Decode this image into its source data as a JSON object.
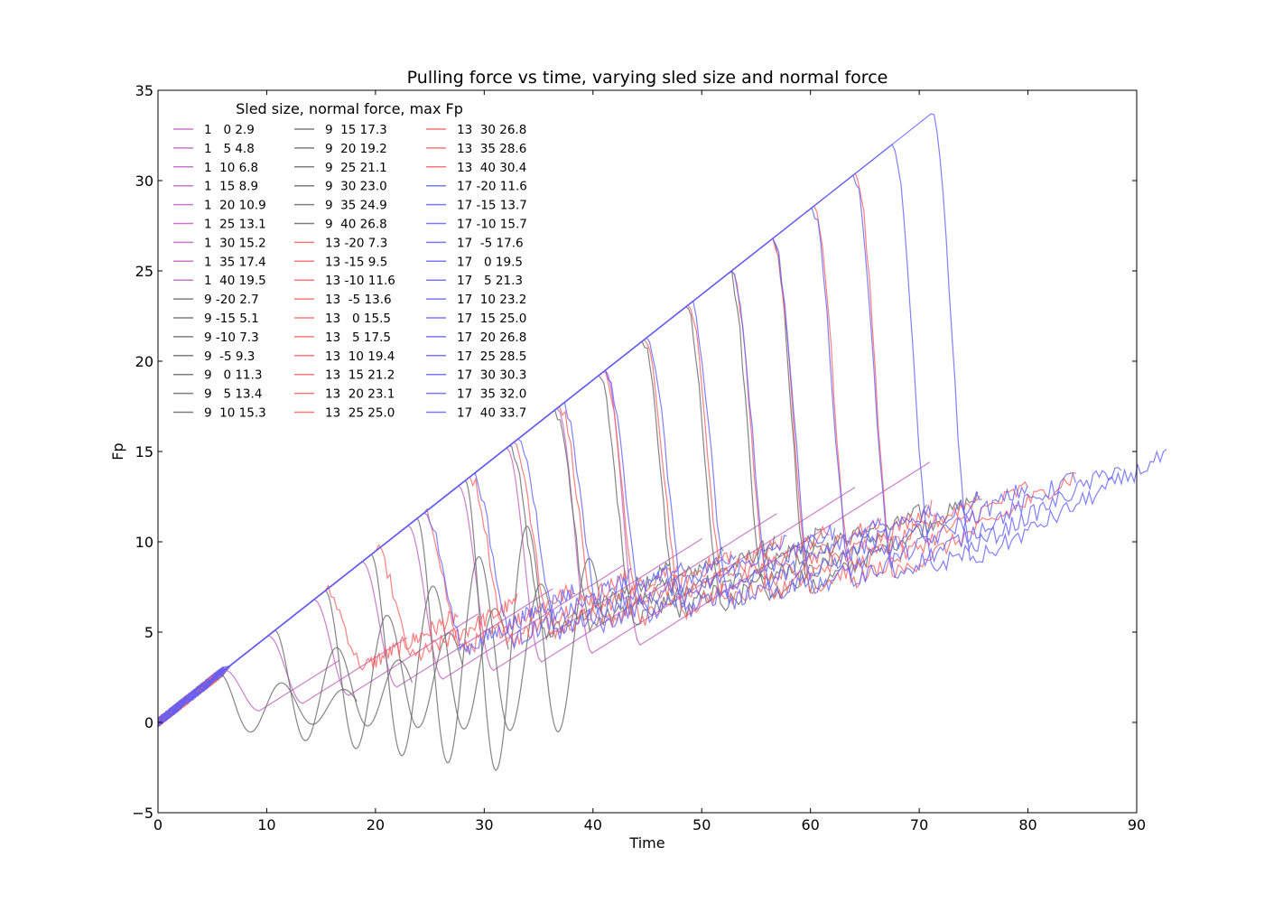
{
  "chart_data": {
    "type": "line",
    "title": "Pulling force vs time, varying sled size and normal force",
    "xlabel": "Time",
    "ylabel": "Fp",
    "xlim": [
      0,
      90
    ],
    "ylim": [
      -5,
      35
    ],
    "xticks": [
      0,
      10,
      20,
      30,
      40,
      50,
      60,
      70,
      80,
      90
    ],
    "yticks": [
      -5,
      0,
      5,
      10,
      15,
      20,
      25,
      30,
      35
    ],
    "grid": false,
    "legend": {
      "title": "Sled size, normal force, max Fp",
      "placement": "upper-left",
      "columns": 3
    },
    "colors": {
      "1": "#bf5fbf",
      "9": "#666666",
      "13": "#ff5f5f",
      "17": "#6060ff"
    },
    "series": [
      {
        "name": "1   0 2.9",
        "size": 1,
        "normal": 0,
        "max": 2.9
      },
      {
        "name": "1   5 4.8",
        "size": 1,
        "normal": 5,
        "max": 4.8
      },
      {
        "name": "1  10 6.8",
        "size": 1,
        "normal": 10,
        "max": 6.8
      },
      {
        "name": "1  15 8.9",
        "size": 1,
        "normal": 15,
        "max": 8.9
      },
      {
        "name": "1  20 10.9",
        "size": 1,
        "normal": 20,
        "max": 10.9
      },
      {
        "name": "1  25 13.1",
        "size": 1,
        "normal": 25,
        "max": 13.1
      },
      {
        "name": "1  30 15.2",
        "size": 1,
        "normal": 30,
        "max": 15.2
      },
      {
        "name": "1  35 17.4",
        "size": 1,
        "normal": 35,
        "max": 17.4
      },
      {
        "name": "1  40 19.5",
        "size": 1,
        "normal": 40,
        "max": 19.5
      },
      {
        "name": "9 -20 2.7",
        "size": 9,
        "normal": -20,
        "max": 2.7
      },
      {
        "name": "9 -15 5.1",
        "size": 9,
        "normal": -15,
        "max": 5.1
      },
      {
        "name": "9 -10 7.3",
        "size": 9,
        "normal": -10,
        "max": 7.3
      },
      {
        "name": "9  -5 9.3",
        "size": 9,
        "normal": -5,
        "max": 9.3
      },
      {
        "name": "9   0 11.3",
        "size": 9,
        "normal": 0,
        "max": 11.3
      },
      {
        "name": "9   5 13.4",
        "size": 9,
        "normal": 5,
        "max": 13.4
      },
      {
        "name": "9  10 15.3",
        "size": 9,
        "normal": 10,
        "max": 15.3
      },
      {
        "name": "9  15 17.3",
        "size": 9,
        "normal": 15,
        "max": 17.3
      },
      {
        "name": "9  20 19.2",
        "size": 9,
        "normal": 20,
        "max": 19.2
      },
      {
        "name": "9  25 21.1",
        "size": 9,
        "normal": 25,
        "max": 21.1
      },
      {
        "name": "9  30 23.0",
        "size": 9,
        "normal": 30,
        "max": 23.0
      },
      {
        "name": "9  35 24.9",
        "size": 9,
        "normal": 35,
        "max": 24.9
      },
      {
        "name": "9  40 26.8",
        "size": 9,
        "normal": 40,
        "max": 26.8
      },
      {
        "name": "13 -20 7.3",
        "size": 13,
        "normal": -20,
        "max": 7.3
      },
      {
        "name": "13 -15 9.5",
        "size": 13,
        "normal": -15,
        "max": 9.5
      },
      {
        "name": "13 -10 11.6",
        "size": 13,
        "normal": -10,
        "max": 11.6
      },
      {
        "name": "13  -5 13.6",
        "size": 13,
        "normal": -5,
        "max": 13.6
      },
      {
        "name": "13   0 15.5",
        "size": 13,
        "normal": 0,
        "max": 15.5
      },
      {
        "name": "13   5 17.5",
        "size": 13,
        "normal": 5,
        "max": 17.5
      },
      {
        "name": "13  10 19.4",
        "size": 13,
        "normal": 10,
        "max": 19.4
      },
      {
        "name": "13  15 21.2",
        "size": 13,
        "normal": 15,
        "max": 21.2
      },
      {
        "name": "13  20 23.1",
        "size": 13,
        "normal": 20,
        "max": 23.1
      },
      {
        "name": "13  25 25.0",
        "size": 13,
        "normal": 25,
        "max": 25.0
      },
      {
        "name": "13  30 26.8",
        "size": 13,
        "normal": 30,
        "max": 26.8
      },
      {
        "name": "13  35 28.6",
        "size": 13,
        "normal": 35,
        "max": 28.6
      },
      {
        "name": "13  40 30.4",
        "size": 13,
        "normal": 40,
        "max": 30.4
      },
      {
        "name": "17 -20 11.6",
        "size": 17,
        "normal": -20,
        "max": 11.6
      },
      {
        "name": "17 -15 13.7",
        "size": 17,
        "normal": -15,
        "max": 13.7
      },
      {
        "name": "17 -10 15.7",
        "size": 17,
        "normal": -10,
        "max": 15.7
      },
      {
        "name": "17  -5 17.6",
        "size": 17,
        "normal": -5,
        "max": 17.6
      },
      {
        "name": "17   0 19.5",
        "size": 17,
        "normal": 0,
        "max": 19.5
      },
      {
        "name": "17   5 21.3",
        "size": 17,
        "normal": 5,
        "max": 21.3
      },
      {
        "name": "17  10 23.2",
        "size": 17,
        "normal": 10,
        "max": 23.2
      },
      {
        "name": "17  15 25.0",
        "size": 17,
        "normal": 15,
        "max": 25.0
      },
      {
        "name": "17  20 26.8",
        "size": 17,
        "normal": 20,
        "max": 26.8
      },
      {
        "name": "17  25 28.5",
        "size": 17,
        "normal": 25,
        "max": 28.5
      },
      {
        "name": "17  30 30.3",
        "size": 17,
        "normal": 30,
        "max": 30.3
      },
      {
        "name": "17  35 32.0",
        "size": 17,
        "normal": 35,
        "max": 32.0
      },
      {
        "name": "17  40 33.7",
        "size": 17,
        "normal": 40,
        "max": 33.7
      }
    ]
  }
}
